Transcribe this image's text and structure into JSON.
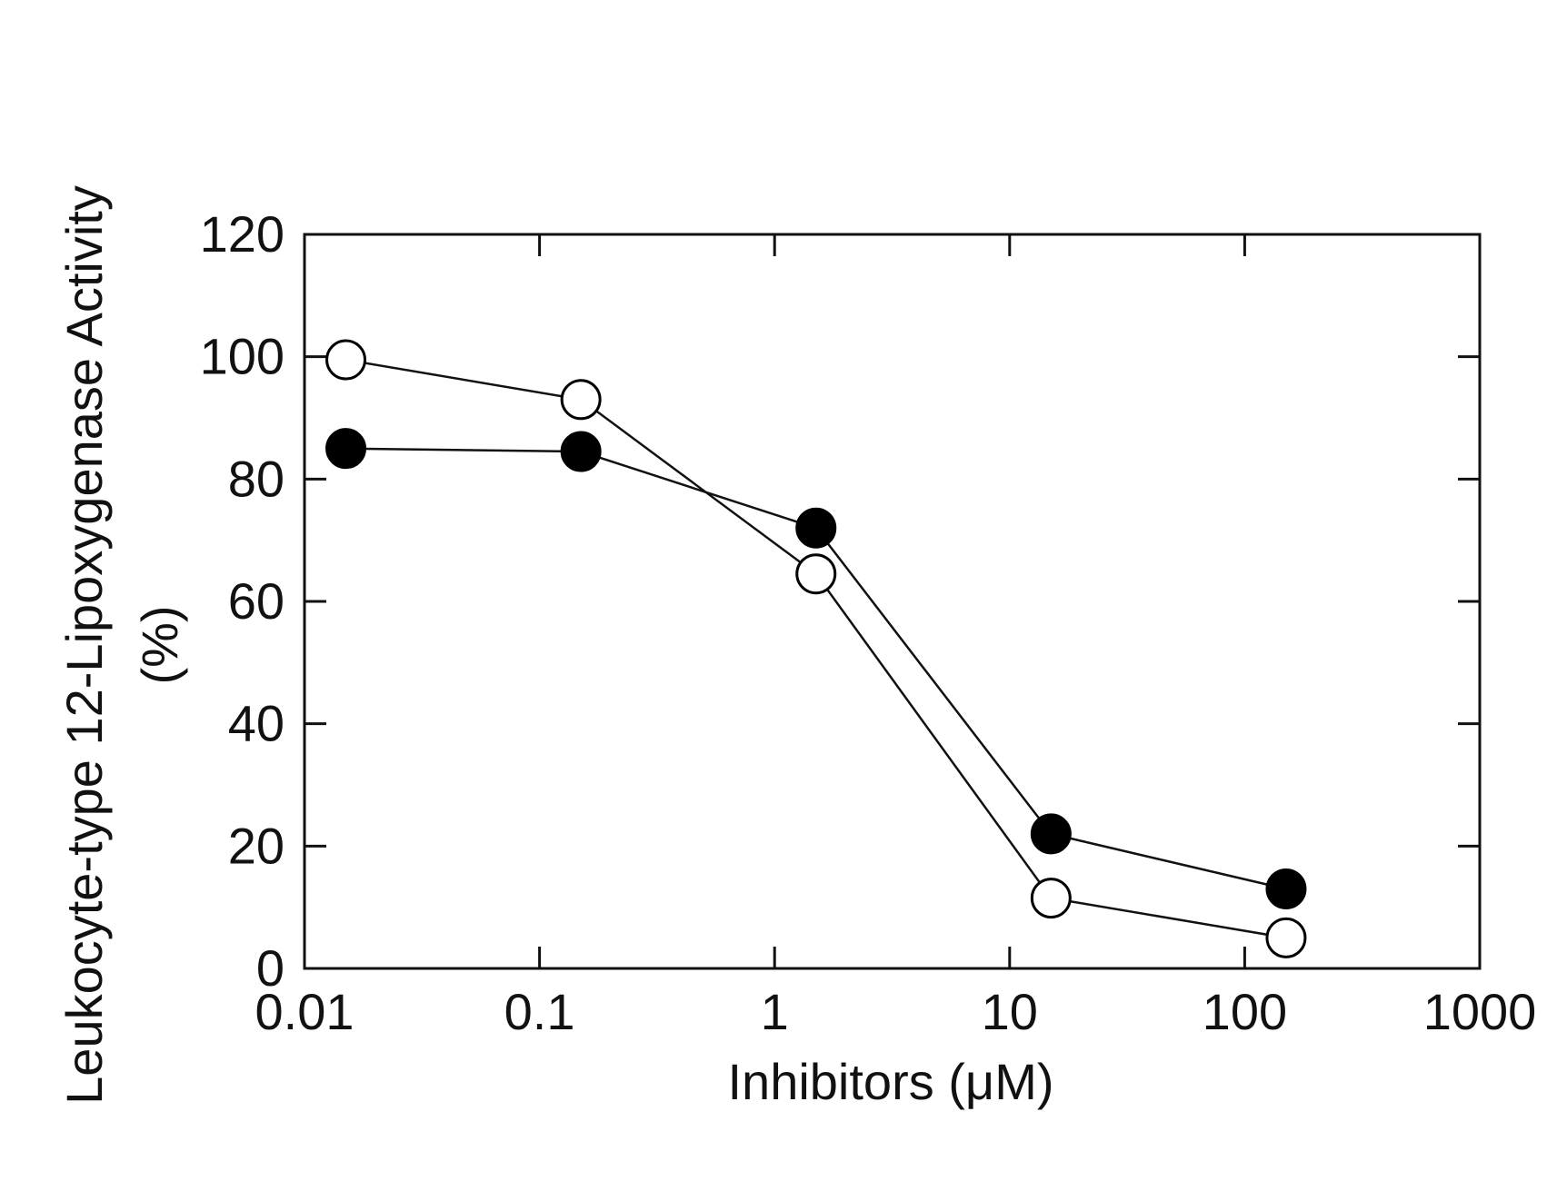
{
  "chart_data": {
    "type": "line",
    "title": "",
    "xlabel": "Inhibitors (μM)",
    "ylabel_line1": "Leukocyte-type 12-Lipoxygenase Activity",
    "ylabel_line2": "(%)",
    "x_scale": "log",
    "xlim": [
      0.01,
      1000
    ],
    "ylim": [
      0,
      120
    ],
    "x_ticks": [
      0.01,
      0.1,
      1,
      10,
      100,
      1000
    ],
    "x_tick_labels": [
      "0.01",
      "0.1",
      "1",
      "10",
      "100",
      "1000"
    ],
    "y_ticks": [
      0,
      20,
      40,
      60,
      80,
      100,
      120
    ],
    "y_tick_labels": [
      "0",
      "20",
      "40",
      "60",
      "80",
      "100",
      "120"
    ],
    "grid": false,
    "legend": "none",
    "series": [
      {
        "marker": "filled-circle",
        "color": "#000000",
        "x": [
          0.015,
          0.15,
          1.5,
          15,
          150
        ],
        "y": [
          85,
          84.5,
          72,
          22,
          13
        ]
      },
      {
        "marker": "open-circle",
        "color": "#000000",
        "x": [
          0.015,
          0.15,
          1.5,
          15,
          150
        ],
        "y": [
          99.5,
          93,
          64.5,
          11.5,
          5
        ]
      }
    ]
  }
}
